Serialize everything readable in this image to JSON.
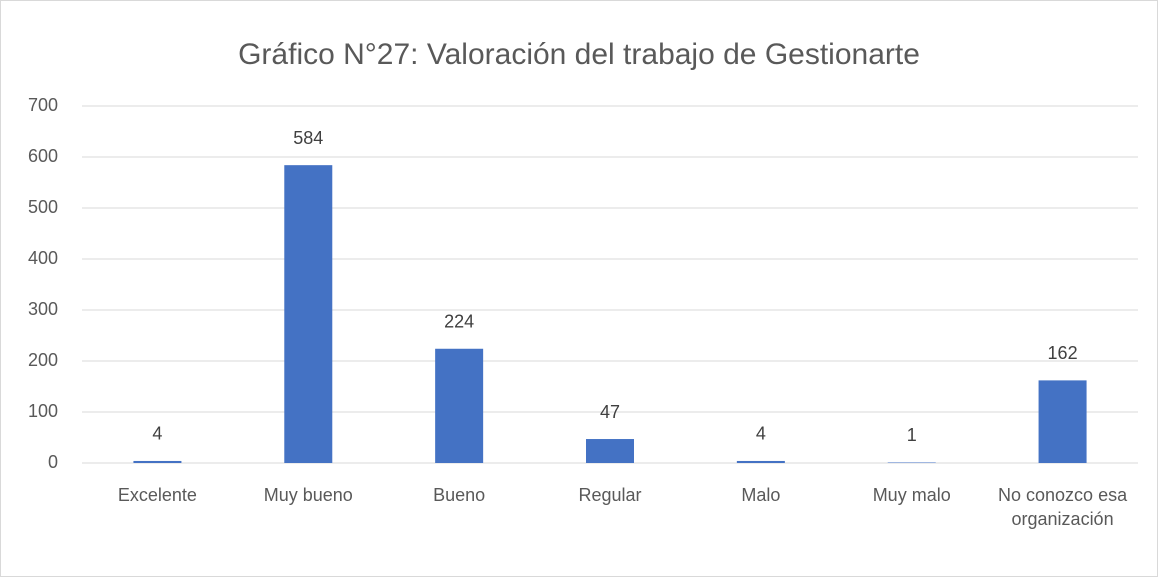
{
  "chart_data": {
    "type": "bar",
    "title": "Gráfico N°27: Valoración del trabajo de Gestionarte",
    "categories": [
      "Excelente",
      "Muy bueno",
      "Bueno",
      "Regular",
      "Malo",
      "Muy malo",
      "No conozco esa organización"
    ],
    "values": [
      4,
      584,
      224,
      47,
      4,
      1,
      162
    ],
    "color": "#4472c4",
    "ylim": [
      0,
      700
    ],
    "yticks": [
      0,
      100,
      200,
      300,
      400,
      500,
      600,
      700
    ],
    "grid": true
  }
}
